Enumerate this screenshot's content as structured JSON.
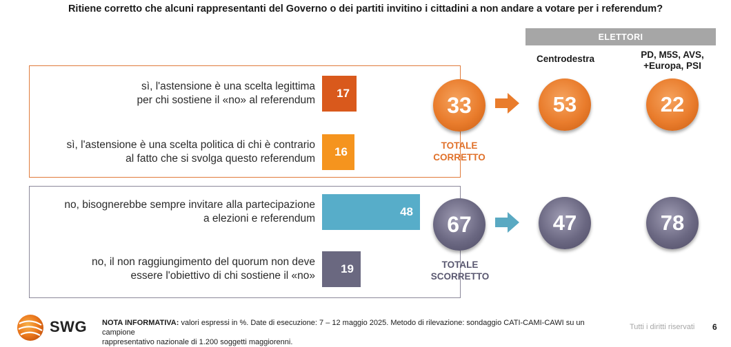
{
  "title": "Ritiene corretto che alcuni rappresentanti del Governo o dei partiti invitino i cittadini a non andare a votare per i referendum?",
  "electors_header": "ELETTORI",
  "columns": {
    "centrodestra": "Centrodestra",
    "opposizione_line1": "PD, M5S, AVS,",
    "opposizione_line2": "+Europa, PSI"
  },
  "totals": {
    "corretto_line1": "TOTALE",
    "corretto_line2": "CORRETTO",
    "scorretto_line1": "TOTALE",
    "scorretto_line2": "SCORRETTO"
  },
  "colors": {
    "orange_dark": "#d9591c",
    "orange_light": "#f5941e",
    "teal": "#57adc9",
    "slate": "#6a6880",
    "orange_text": "#e0712a",
    "slate_text": "#5a5870"
  },
  "chart_data": {
    "type": "bar",
    "orientation": "horizontal",
    "categories": [
      "sì, l'astensione è una scelta legittima per chi sostiene il «no» al referendum",
      "sì, l'astensione è una scelta politica di chi è contrario al fatto che si svolga questo referendum",
      "no, bisognerebbe sempre invitare alla partecipazione a elezioni e referendum",
      "no, il non raggiungimento del quorum non deve essere l'obiettivo di chi sostiene il «no»"
    ],
    "labels": [
      [
        "sì, l'astensione è una scelta legittima",
        "per chi sostiene il «no» al referendum"
      ],
      [
        "sì, l'astensione è una scelta politica di chi è contrario",
        "al fatto che si svolga questo referendum"
      ],
      [
        "no, bisognerebbe sempre invitare alla partecipazione",
        "a elezioni e referendum"
      ],
      [
        "no, il non raggiungimento del quorum non deve",
        "essere l'obiettivo di chi sostiene il «no»"
      ]
    ],
    "values": [
      17,
      16,
      48,
      19
    ],
    "totals": {
      "corretto": 33,
      "scorretto": 67
    },
    "by_electorate": {
      "Centrodestra": {
        "corretto": 53,
        "scorretto": 47
      },
      "PD, M5S, AVS, +Europa, PSI": {
        "corretto": 22,
        "scorretto": 78
      }
    },
    "unit": "%"
  },
  "footer": {
    "logo": "SWG",
    "note_label": "NOTA INFORMATIVA:",
    "note_text": " valori espressi in %. Date di esecuzione: 7 – 12 maggio 2025. Metodo di rilevazione: sondaggio CATI-CAMI-CAWI su un campione",
    "note_text2": "rappresentativo nazionale di 1.200 soggetti maggiorenni.",
    "rights": "Tutti i diritti riservati",
    "page": "6"
  }
}
